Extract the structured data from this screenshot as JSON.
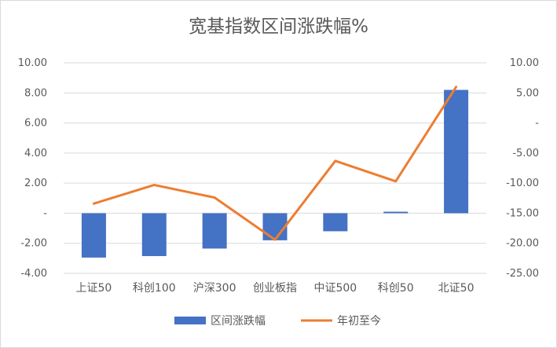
{
  "chart_data": {
    "type": "bar+line",
    "title": "宽基指数区间涨跌幅%",
    "categories": [
      "上证50",
      "科创100",
      "沪深300",
      "创业板指",
      "中证500",
      "科创50",
      "北证50"
    ],
    "series": [
      {
        "name": "区间涨跌幅",
        "type": "bar",
        "axis": "left",
        "color": "#4472C4",
        "values": [
          -2.95,
          -2.85,
          -2.35,
          -1.8,
          -1.2,
          0.1,
          8.2
        ]
      },
      {
        "name": "年初至今",
        "type": "line",
        "axis": "right",
        "color": "#ED7D31",
        "values": [
          -13.4,
          -10.3,
          -12.4,
          -19.4,
          -6.3,
          -9.7,
          6.0
        ]
      }
    ],
    "left_axis": {
      "ylim": [
        -4,
        10
      ],
      "ticks": [
        10,
        8,
        6,
        4,
        2,
        0,
        -2,
        -4
      ],
      "tick_labels": [
        "10.00",
        "8.00",
        "6.00",
        "4.00",
        "2.00",
        "-",
        "-2.00",
        "-4.00"
      ]
    },
    "right_axis": {
      "ylim": [
        -25,
        10
      ],
      "ticks": [
        10,
        5,
        0,
        -5,
        -10,
        -15,
        -20,
        -25
      ],
      "tick_labels": [
        "10.00",
        "5.00",
        "-",
        "-5.00",
        "-10.00",
        "-15.00",
        "-20.00",
        "-25.00"
      ]
    },
    "grid": true,
    "legend": "bottom"
  }
}
